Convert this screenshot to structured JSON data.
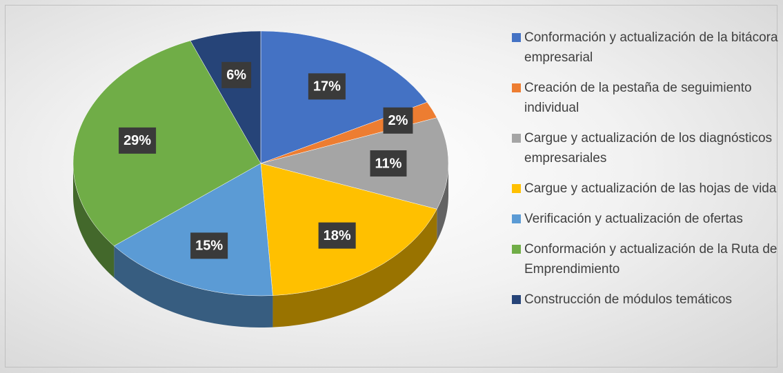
{
  "chart_data": {
    "type": "pie",
    "categories": [
      "Conformación y actualización de la bitácora empresarial",
      "Creación de la pestaña de seguimiento individual",
      "Cargue y actualización de los diagnósticos empresariales",
      "Cargue y actualización de las hojas de vida",
      "Verificación y actualización de ofertas",
      "Conformación y actualización de la Ruta de Emprendimiento",
      "Construcción de módulos temáticos"
    ],
    "values": [
      17,
      2,
      11,
      18,
      15,
      29,
      6
    ],
    "value_labels": [
      "17%",
      "2%",
      "11%",
      "18%",
      "15%",
      "29%",
      "6%"
    ],
    "colors": [
      "#4472c4",
      "#ed7d31",
      "#a5a5a5",
      "#ffc000",
      "#5b9bd5",
      "#70ad47",
      "#264478"
    ],
    "legend": "right"
  }
}
